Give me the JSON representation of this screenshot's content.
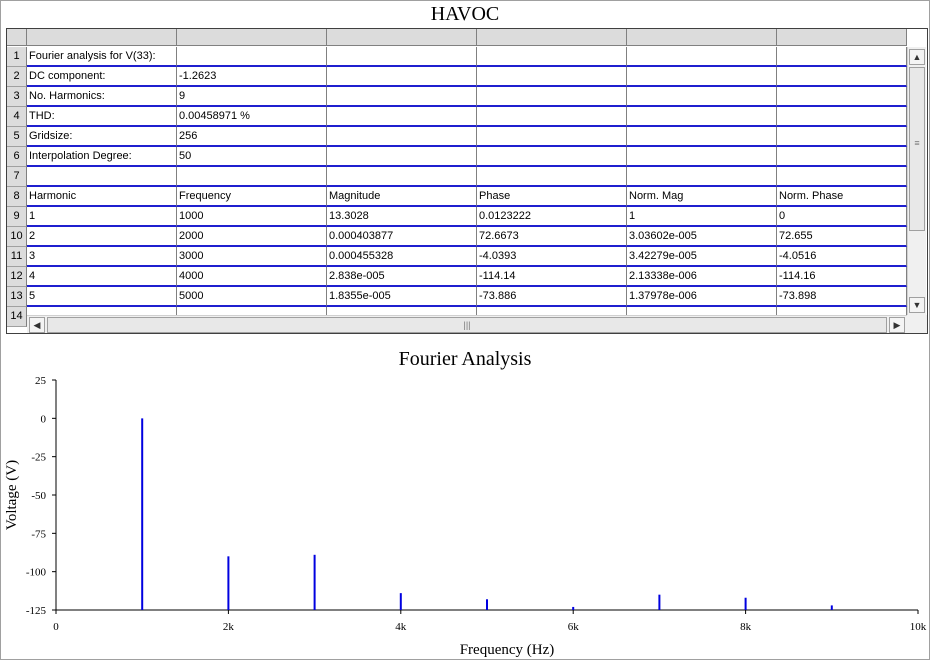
{
  "app": {
    "title": "HAVOC"
  },
  "sheet": {
    "rows": [
      {
        "n": "1",
        "cells": [
          "Fourier analysis for V(33):",
          "",
          "",
          "",
          "",
          ""
        ]
      },
      {
        "n": "2",
        "cells": [
          "DC component:",
          "-1.2623",
          "",
          "",
          "",
          ""
        ]
      },
      {
        "n": "3",
        "cells": [
          "No. Harmonics:",
          "9",
          "",
          "",
          "",
          ""
        ]
      },
      {
        "n": "4",
        "cells": [
          "THD:",
          "0.00458971 %",
          "",
          "",
          "",
          ""
        ]
      },
      {
        "n": "5",
        "cells": [
          "Gridsize:",
          "256",
          "",
          "",
          "",
          ""
        ]
      },
      {
        "n": "6",
        "cells": [
          "Interpolation Degree:",
          "50",
          "",
          "",
          "",
          ""
        ]
      },
      {
        "n": "7",
        "cells": [
          "",
          "",
          "",
          "",
          "",
          ""
        ]
      },
      {
        "n": "8",
        "cells": [
          "Harmonic",
          "Frequency",
          "Magnitude",
          "Phase",
          "Norm. Mag",
          "Norm. Phase"
        ]
      },
      {
        "n": "9",
        "cells": [
          "1",
          "1000",
          "13.3028",
          "0.0123222",
          "1",
          "0"
        ]
      },
      {
        "n": "10",
        "cells": [
          "2",
          "2000",
          "0.000403877",
          "72.6673",
          "3.03602e-005",
          "72.655"
        ]
      },
      {
        "n": "11",
        "cells": [
          "3",
          "3000",
          "0.000455328",
          "-4.0393",
          "3.42279e-005",
          "-4.0516"
        ]
      },
      {
        "n": "12",
        "cells": [
          "4",
          "4000",
          "2.838e-005",
          "-114.14",
          "2.13338e-006",
          "-114.16"
        ]
      },
      {
        "n": "13",
        "cells": [
          "5",
          "5000",
          "1.8355e-005",
          "-73.886",
          "1.37978e-006",
          "-73.898"
        ]
      },
      {
        "n": "14",
        "cells": [
          "",
          "",
          "",
          "",
          "",
          ""
        ]
      }
    ]
  },
  "chart_data": {
    "type": "bar",
    "title": "Fourier Analysis",
    "xlabel": "Frequency (Hz)",
    "ylabel": "Voltage (V)",
    "xlim": [
      0,
      10000
    ],
    "ylim": [
      -125,
      25
    ],
    "x_ticks": [
      0,
      2000,
      4000,
      6000,
      8000,
      10000
    ],
    "x_tick_labels": [
      "0",
      "2k",
      "4k",
      "6k",
      "8k",
      "10k"
    ],
    "y_ticks": [
      25,
      0,
      -25,
      -50,
      -75,
      -100,
      -125
    ],
    "y_tick_labels": [
      "25",
      "0",
      "-25",
      "-50",
      "-75",
      "-100",
      "-125"
    ],
    "bar_color": "#0000e0",
    "x": [
      1000,
      2000,
      3000,
      4000,
      5000,
      6000,
      7000,
      8000,
      9000
    ],
    "values": [
      0,
      -90,
      -89,
      -114,
      -118,
      -123,
      -115,
      -117,
      -122
    ]
  }
}
